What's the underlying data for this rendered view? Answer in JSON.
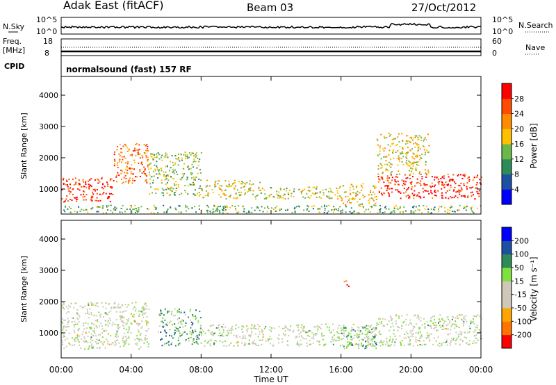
{
  "header": {
    "radar": "Adak East (fitACF)",
    "beam": "Beam 03",
    "date": "27/Oct/2012"
  },
  "nsky_panel": {
    "left_label": "N.Sky",
    "right_label": "N.Search",
    "ticks_left": [
      "10^5",
      "10^0"
    ],
    "ticks_right": [
      "10^5",
      "10^0"
    ]
  },
  "freq_panel": {
    "left_label_1": "Freq.",
    "left_label_2": "[MHz]",
    "right_label": "Nave",
    "ticks_left": [
      "18",
      "8"
    ],
    "ticks_right": [
      "60",
      "0"
    ]
  },
  "cpid": {
    "label": "CPID",
    "value": "normalsound (fast) 157 RF"
  },
  "colors": {
    "power_scale": [
      "#0000ff",
      "#1d4fa3",
      "#2e8b57",
      "#6ab84a",
      "#ffc000",
      "#ff8c00",
      "#ff4a00",
      "#ff0000"
    ],
    "velocity_scale": [
      "#ff0000",
      "#ff7300",
      "#ffa500",
      "#cfc8b8",
      "#cfc8b8",
      "#80e040",
      "#2e8b57",
      "#1d4fa3",
      "#0000ff"
    ]
  },
  "chart_data": [
    {
      "type": "heatmap",
      "name": "power",
      "ylabel": "Slant Range [km]",
      "y_ticks": [
        "1000",
        "2000",
        "3000",
        "4000"
      ],
      "ylim": [
        200,
        4600
      ],
      "x_ticks": [
        "00:00",
        "04:00",
        "08:00",
        "12:00",
        "16:00",
        "20:00",
        "00:00"
      ],
      "xlim_hours": [
        0,
        24
      ],
      "colorbar": {
        "label": "Power [dB]",
        "ticks": [
          "4",
          "8",
          "12",
          "16",
          "20",
          "24",
          "28"
        ],
        "range": [
          0,
          32
        ]
      },
      "scatter_blobs": [
        {
          "x": [
            0.0,
            3.0
          ],
          "y": [
            600,
            1400
          ],
          "level": 0.9
        },
        {
          "x": [
            3.0,
            5.0
          ],
          "y": [
            1200,
            2500
          ],
          "level": 0.75
        },
        {
          "x": [
            5.0,
            8.0
          ],
          "y": [
            800,
            2200
          ],
          "level": 0.45
        },
        {
          "x": [
            8.0,
            11.5
          ],
          "y": [
            700,
            1300
          ],
          "level": 0.55
        },
        {
          "x": [
            11.5,
            16.0
          ],
          "y": [
            700,
            1100
          ],
          "level": 0.5
        },
        {
          "x": [
            16.0,
            18.0
          ],
          "y": [
            500,
            1200
          ],
          "level": 0.6
        },
        {
          "x": [
            18.0,
            24.0
          ],
          "y": [
            700,
            1500
          ],
          "level": 0.9
        },
        {
          "x": [
            18.0,
            21.0
          ],
          "y": [
            1500,
            2800
          ],
          "level": 0.55
        },
        {
          "x": [
            0.0,
            24.0
          ],
          "y": [
            250,
            500
          ],
          "level": 0.4
        }
      ]
    },
    {
      "type": "heatmap",
      "name": "velocity",
      "ylabel": "Slant Range [km]",
      "y_ticks": [
        "1000",
        "2000",
        "3000",
        "4000"
      ],
      "ylim": [
        200,
        4600
      ],
      "x_ticks": [
        "00:00",
        "04:00",
        "08:00",
        "12:00",
        "16:00",
        "20:00",
        "00:00"
      ],
      "xlabel": "Time UT",
      "xlim_hours": [
        0,
        24
      ],
      "colorbar": {
        "label": "Velocity [m s⁻¹]",
        "ticks": [
          "200",
          "100",
          "50",
          "15",
          "-15",
          "-50",
          "-100",
          "-200"
        ],
        "range": [
          -250,
          250
        ]
      },
      "scatter_blobs": [
        {
          "x": [
            0.0,
            5.0
          ],
          "y": [
            500,
            2000
          ],
          "level": 0.5
        },
        {
          "x": [
            5.5,
            8.0
          ],
          "y": [
            600,
            1800
          ],
          "level": 0.65
        },
        {
          "x": [
            8.0,
            18.0
          ],
          "y": [
            600,
            1300
          ],
          "level": 0.5
        },
        {
          "x": [
            16.0,
            18.0
          ],
          "y": [
            500,
            1200
          ],
          "level": 0.65
        },
        {
          "x": [
            18.0,
            24.0
          ],
          "y": [
            600,
            1600
          ],
          "level": 0.5
        },
        {
          "x": [
            16.1,
            16.5
          ],
          "y": [
            2500,
            2700
          ],
          "level": 0.02
        }
      ]
    }
  ]
}
